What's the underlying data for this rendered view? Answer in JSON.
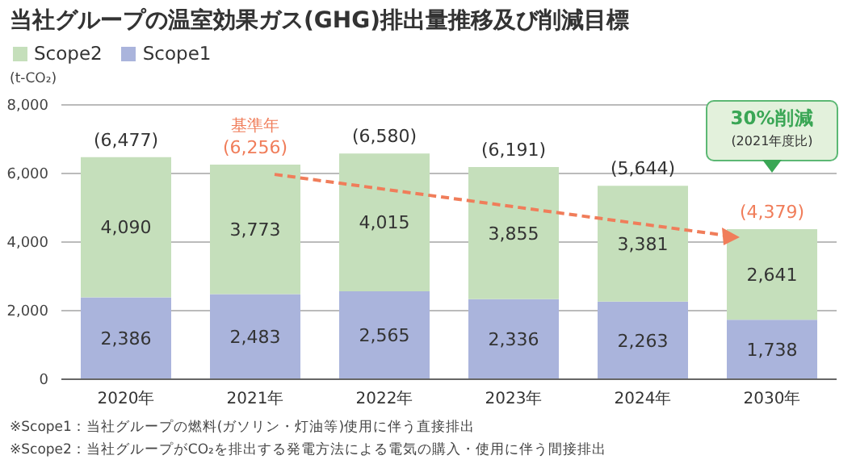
{
  "chart_data": {
    "type": "bar",
    "title": "当社グループの温室効果ガス(GHG)排出量推移及び削減目標",
    "ylabel": "(t-CO₂)",
    "categories": [
      "2020年",
      "2021年",
      "2022年",
      "2023年",
      "2024年",
      "2030年"
    ],
    "stacked": true,
    "series": [
      {
        "name": "Scope1",
        "color": "#aab4dc",
        "values": [
          2386,
          2483,
          2565,
          2336,
          2263,
          1738
        ],
        "value_labels": [
          "2,386",
          "2,483",
          "2,565",
          "2,336",
          "2,263",
          "1,738"
        ]
      },
      {
        "name": "Scope2",
        "color": "#c5dfbb",
        "values": [
          4090,
          3773,
          4015,
          3855,
          3381,
          2641
        ],
        "value_labels": [
          "4,090",
          "3,773",
          "4,015",
          "3,855",
          "3,381",
          "2,641"
        ]
      }
    ],
    "totals": [
      "(6,477)",
      "(6,256)",
      "(6,580)",
      "(6,191)",
      "(5,644)",
      "(4,379)"
    ],
    "ylim": [
      0,
      8000
    ],
    "yticks": [
      {
        "value": 0,
        "label": "0"
      },
      {
        "value": 2000,
        "label": "2,000"
      },
      {
        "value": 4000,
        "label": "4,000"
      },
      {
        "value": 6000,
        "label": "6,000"
      },
      {
        "value": 8000,
        "label": "8,000"
      }
    ],
    "grid": "y",
    "legend": "top left",
    "annotations": [
      {
        "text": "基準年",
        "x": "2021年",
        "y": 6256
      },
      "30%削減",
      "(2021年度比)",
      "※Scope1：当社グループの燃料(ガソリン・灯油等)使用に伴う直接排出",
      "※Scope2：当社グループがCO₂を排出する発電方法による電気の購入・使用に伴う間接排出"
    ]
  }
}
